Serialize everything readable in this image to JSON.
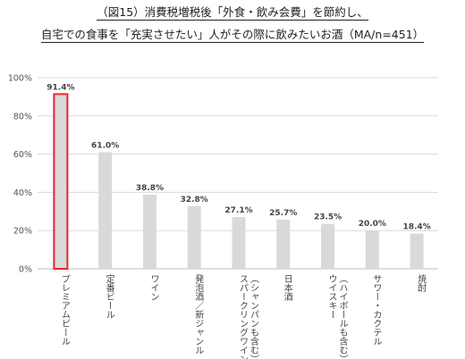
{
  "title_line1": "（図15）消費税増税後「外食・飲み会費」を節約し、",
  "title_line2": "自宅での食事を「充実させたい」人がその際に飲みたいお酒（MA/n=451）",
  "chart_data": {
    "type": "bar",
    "title": "（図15）消費税増税後「外食・飲み会費」を節約し、自宅での食事を「充実させたい」人がその際に飲みたいお酒（MA/n=451）",
    "categories": [
      "プレミアムビール",
      "定番ビール",
      "ワイン",
      "発泡酒／新ジャンル",
      "スパークリングワイン（シャンパンも含む）",
      "日本酒",
      "ウイスキー（ハイボールも含む）",
      "サワー・カクテル",
      "焼酎"
    ],
    "category_lines": [
      [
        "プレミアムビール"
      ],
      [
        "定番ビール"
      ],
      [
        "ワイン"
      ],
      [
        "発泡酒／新ジャンル"
      ],
      [
        "スパークリングワイン",
        "（シャンパンも含む）"
      ],
      [
        "日本酒"
      ],
      [
        "ウイスキー",
        "（ハイボールも含む）"
      ],
      [
        "サワー・カクテル"
      ],
      [
        "焼酎"
      ]
    ],
    "values": [
      91.4,
      61.0,
      38.8,
      32.8,
      27.1,
      25.7,
      23.5,
      20.0,
      18.4
    ],
    "data_labels": [
      "91.4%",
      "61.0%",
      "38.8%",
      "32.8%",
      "27.1%",
      "25.7%",
      "23.5%",
      "20.0%",
      "18.4%"
    ],
    "ylim": [
      0,
      100
    ],
    "yticks": [
      0,
      20,
      40,
      60,
      80,
      100
    ],
    "ytick_labels": [
      "0%",
      "20%",
      "40%",
      "60%",
      "80%",
      "100%"
    ],
    "highlight_index": 0,
    "grid": true,
    "colors": {
      "bar": "#d9d9d9",
      "highlight_border": "#e8262a",
      "grid": "#d9d9d9",
      "axis": "#bfbfbf"
    }
  }
}
